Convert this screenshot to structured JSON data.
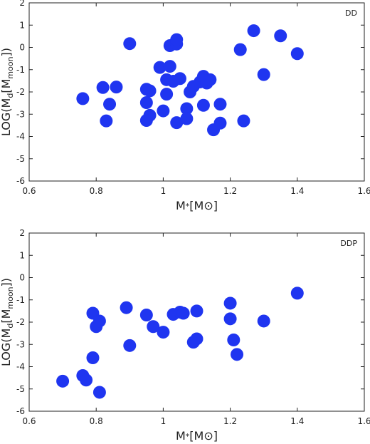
{
  "chart_data": [
    {
      "type": "scatter",
      "title": "",
      "panel_label": "DD",
      "xlabel": "M*[M⊙]",
      "ylabel": "LOG(Md[Mmoon])",
      "xlim": [
        0.6,
        1.6
      ],
      "ylim": [
        -6,
        2
      ],
      "xticks": [
        "0.6",
        "0.8",
        "1",
        "1.2",
        "1.4",
        "1.6"
      ],
      "yticks": [
        "-6",
        "-5",
        "-4",
        "-3",
        "-2",
        "-1",
        "0",
        "1",
        "2"
      ],
      "grid": false,
      "marker_color": "#1f35f0",
      "points": [
        {
          "x": 0.76,
          "y": -2.3
        },
        {
          "x": 0.82,
          "y": -1.8
        },
        {
          "x": 0.84,
          "y": -2.55
        },
        {
          "x": 0.86,
          "y": -1.78
        },
        {
          "x": 0.83,
          "y": -3.3
        },
        {
          "x": 0.9,
          "y": 0.17
        },
        {
          "x": 0.95,
          "y": -1.88
        },
        {
          "x": 0.96,
          "y": -1.95
        },
        {
          "x": 0.95,
          "y": -2.48
        },
        {
          "x": 0.96,
          "y": -3.05
        },
        {
          "x": 0.95,
          "y": -3.28
        },
        {
          "x": 0.99,
          "y": -0.9
        },
        {
          "x": 1.0,
          "y": -2.85
        },
        {
          "x": 1.01,
          "y": -2.1
        },
        {
          "x": 1.01,
          "y": -1.45
        },
        {
          "x": 1.02,
          "y": -0.85
        },
        {
          "x": 1.02,
          "y": 0.08
        },
        {
          "x": 1.03,
          "y": -1.52
        },
        {
          "x": 1.04,
          "y": 0.15
        },
        {
          "x": 1.04,
          "y": 0.35
        },
        {
          "x": 1.05,
          "y": -1.4
        },
        {
          "x": 1.04,
          "y": -3.38
        },
        {
          "x": 1.07,
          "y": -2.75
        },
        {
          "x": 1.07,
          "y": -3.2
        },
        {
          "x": 1.08,
          "y": -2.0
        },
        {
          "x": 1.09,
          "y": -1.75
        },
        {
          "x": 1.11,
          "y": -1.55
        },
        {
          "x": 1.12,
          "y": -1.3
        },
        {
          "x": 1.12,
          "y": -2.6
        },
        {
          "x": 1.13,
          "y": -1.6
        },
        {
          "x": 1.14,
          "y": -1.45
        },
        {
          "x": 1.15,
          "y": -3.7
        },
        {
          "x": 1.17,
          "y": -2.55
        },
        {
          "x": 1.17,
          "y": -3.4
        },
        {
          "x": 1.23,
          "y": -0.1
        },
        {
          "x": 1.24,
          "y": -3.3
        },
        {
          "x": 1.27,
          "y": 0.75
        },
        {
          "x": 1.3,
          "y": -1.22
        },
        {
          "x": 1.35,
          "y": 0.52
        },
        {
          "x": 1.4,
          "y": -0.28
        }
      ]
    },
    {
      "type": "scatter",
      "title": "",
      "panel_label": "DDP",
      "xlabel": "M*[M⊙]",
      "ylabel": "LOG(Md[Mmoon])",
      "xlim": [
        0.6,
        1.6
      ],
      "ylim": [
        -6,
        2
      ],
      "xticks": [
        "0.6",
        "0.8",
        "1",
        "1.2",
        "1.4",
        "1.6"
      ],
      "yticks": [
        "-6",
        "-5",
        "-4",
        "-3",
        "-2",
        "-1",
        "0",
        "1",
        "2"
      ],
      "grid": false,
      "marker_color": "#1f35f0",
      "points": [
        {
          "x": 0.7,
          "y": -4.65
        },
        {
          "x": 0.76,
          "y": -4.4
        },
        {
          "x": 0.77,
          "y": -4.6
        },
        {
          "x": 0.79,
          "y": -1.6
        },
        {
          "x": 0.79,
          "y": -3.6
        },
        {
          "x": 0.8,
          "y": -2.2
        },
        {
          "x": 0.81,
          "y": -1.95
        },
        {
          "x": 0.81,
          "y": -5.15
        },
        {
          "x": 0.89,
          "y": -1.35
        },
        {
          "x": 0.9,
          "y": -3.05
        },
        {
          "x": 0.95,
          "y": -1.68
        },
        {
          "x": 0.97,
          "y": -2.2
        },
        {
          "x": 1.0,
          "y": -2.45
        },
        {
          "x": 1.03,
          "y": -1.65
        },
        {
          "x": 1.05,
          "y": -1.55
        },
        {
          "x": 1.06,
          "y": -1.6
        },
        {
          "x": 1.09,
          "y": -2.9
        },
        {
          "x": 1.1,
          "y": -2.75
        },
        {
          "x": 1.1,
          "y": -1.5
        },
        {
          "x": 1.2,
          "y": -1.15
        },
        {
          "x": 1.2,
          "y": -1.85
        },
        {
          "x": 1.21,
          "y": -2.8
        },
        {
          "x": 1.22,
          "y": -3.45
        },
        {
          "x": 1.3,
          "y": -1.95
        },
        {
          "x": 1.4,
          "y": -0.7
        }
      ]
    }
  ]
}
